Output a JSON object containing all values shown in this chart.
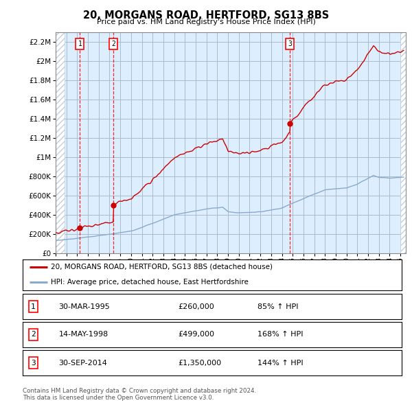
{
  "title": "20, MORGANS ROAD, HERTFORD, SG13 8BS",
  "subtitle": "Price paid vs. HM Land Registry's House Price Index (HPI)",
  "ylabel_ticks": [
    "£0",
    "£200K",
    "£400K",
    "£600K",
    "£800K",
    "£1M",
    "£1.2M",
    "£1.4M",
    "£1.6M",
    "£1.8M",
    "£2M",
    "£2.2M"
  ],
  "ytick_values": [
    0,
    200000,
    400000,
    600000,
    800000,
    1000000,
    1200000,
    1400000,
    1600000,
    1800000,
    2000000,
    2200000
  ],
  "ylim": [
    0,
    2300000
  ],
  "xlim_start": 1993.0,
  "xlim_end": 2025.5,
  "sale_dates": [
    1995.25,
    1998.37,
    2014.75
  ],
  "sale_prices": [
    260000,
    499000,
    1350000
  ],
  "sale_labels": [
    "1",
    "2",
    "3"
  ],
  "legend_line1": "20, MORGANS ROAD, HERTFORD, SG13 8BS (detached house)",
  "legend_line2": "HPI: Average price, detached house, East Hertfordshire",
  "table_rows": [
    [
      "1",
      "30-MAR-1995",
      "£260,000",
      "85% ↑ HPI"
    ],
    [
      "2",
      "14-MAY-1998",
      "£499,000",
      "168% ↑ HPI"
    ],
    [
      "3",
      "30-SEP-2014",
      "£1,350,000",
      "144% ↑ HPI"
    ]
  ],
  "footer": "Contains HM Land Registry data © Crown copyright and database right 2024.\nThis data is licensed under the Open Government Licence v3.0.",
  "bg_color": "#ddeeff",
  "hatch_color": "#c0d0e0",
  "grid_color": "#aabbcc",
  "red_line_color": "#cc0000",
  "blue_line_color": "#88aacc"
}
